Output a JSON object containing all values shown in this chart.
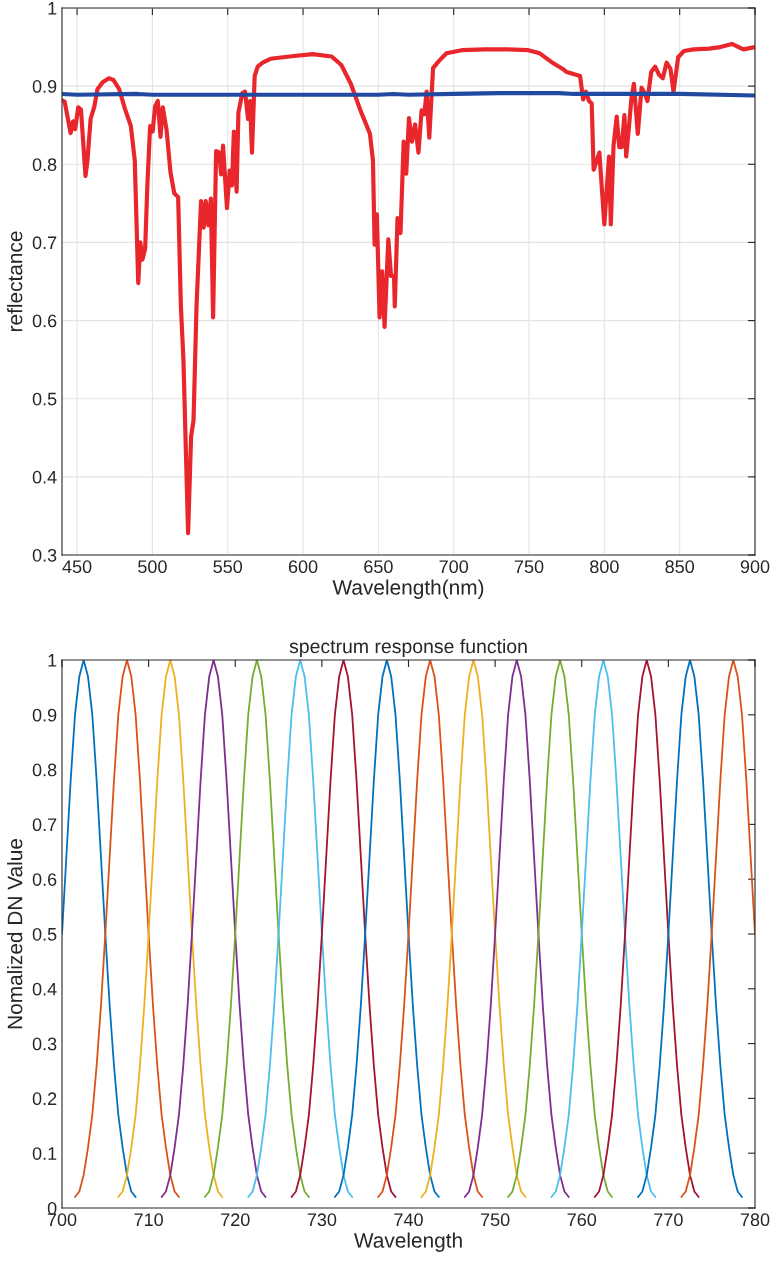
{
  "chart_data": [
    {
      "type": "line",
      "xlabel": "Wavelength(nm)",
      "ylabel": "reflectance",
      "xlim": [
        440,
        900
      ],
      "xticks": [
        450,
        500,
        550,
        600,
        650,
        700,
        750,
        800,
        850,
        900
      ],
      "ylim": [
        0.3,
        1
      ],
      "yticks": [
        0.3,
        0.4,
        0.5,
        0.6,
        0.7,
        0.8,
        0.9,
        1
      ],
      "grid": true,
      "series": [
        {
          "color": "#e8262b",
          "x": [
            440,
            441.8,
            445.7,
            447.4,
            448.7,
            450.8,
            452.6,
            455.6,
            456.9,
            459,
            461.5,
            463.5,
            467,
            471.1,
            474.1,
            478,
            481.8,
            485.7,
            488.3,
            490.6,
            492,
            493.4,
            495.2,
            496.7,
            498.5,
            500.2,
            501.8,
            503.6,
            505.4,
            506.9,
            509.4,
            512,
            514.5,
            517.1,
            518.9,
            520.6,
            523.7,
            525.7,
            527.3,
            529.3,
            532.3,
            534.1,
            535.4,
            537.2,
            538.8,
            540.3,
            542.3,
            544.4,
            545.6,
            546.9,
            549.5,
            551.3,
            552.8,
            554.1,
            555.9,
            557.1,
            559.7,
            561.5,
            563.5,
            564.8,
            566.1,
            567.9,
            569.9,
            573.2,
            578.4,
            591,
            606.3,
            619,
            625.4,
            631.7,
            638.1,
            644.4,
            646.4,
            647.5,
            649,
            650.8,
            652.5,
            654.1,
            656.6,
            658.4,
            660.4,
            660.9,
            662.7,
            664.7,
            666.8,
            668.5,
            670.3,
            672.3,
            674.4,
            676.6,
            678.7,
            680.5,
            682,
            683.8,
            686.3,
            690.1,
            695.2,
            705.3,
            720.6,
            735.8,
            749.5,
            757.1,
            764.8,
            772.4,
            775,
            783.9,
            785.9,
            787.8,
            789.8,
            791.6,
            792.9,
            796.7,
            800,
            803.1,
            804.3,
            806.1,
            808.2,
            809.9,
            811.5,
            813.3,
            814.5,
            816.3,
            817.9,
            819.6,
            822.2,
            824.7,
            826.8,
            828.6,
            831.1,
            833.7,
            836.2,
            838.8,
            841.3,
            843.9,
            845.9,
            849,
            852.8,
            859.2,
            869.4,
            877,
            884.7,
            892.3,
            900
          ],
          "values": [
            0.882,
            0.88,
            0.84,
            0.855,
            0.845,
            0.873,
            0.87,
            0.785,
            0.805,
            0.858,
            0.874,
            0.896,
            0.905,
            0.91,
            0.908,
            0.896,
            0.871,
            0.849,
            0.805,
            0.648,
            0.7,
            0.678,
            0.692,
            0.775,
            0.849,
            0.842,
            0.874,
            0.881,
            0.835,
            0.873,
            0.844,
            0.79,
            0.763,
            0.758,
            0.619,
            0.55,
            0.328,
            0.452,
            0.472,
            0.619,
            0.753,
            0.719,
            0.753,
            0.722,
            0.756,
            0.604,
            0.817,
            0.815,
            0.787,
            0.824,
            0.744,
            0.792,
            0.773,
            0.842,
            0.765,
            0.866,
            0.891,
            0.893,
            0.858,
            0.881,
            0.815,
            0.913,
            0.925,
            0.93,
            0.935,
            0.938,
            0.941,
            0.938,
            0.927,
            0.903,
            0.869,
            0.839,
            0.805,
            0.697,
            0.736,
            0.604,
            0.663,
            0.592,
            0.704,
            0.657,
            0.657,
            0.618,
            0.731,
            0.712,
            0.829,
            0.788,
            0.859,
            0.829,
            0.851,
            0.815,
            0.869,
            0.864,
            0.893,
            0.834,
            0.923,
            0.932,
            0.942,
            0.946,
            0.947,
            0.947,
            0.946,
            0.942,
            0.931,
            0.922,
            0.918,
            0.913,
            0.883,
            0.893,
            0.881,
            0.878,
            0.793,
            0.815,
            0.723,
            0.81,
            0.723,
            0.824,
            0.861,
            0.822,
            0.822,
            0.863,
            0.81,
            0.847,
            0.883,
            0.903,
            0.839,
            0.898,
            0.891,
            0.881,
            0.918,
            0.925,
            0.915,
            0.91,
            0.93,
            0.922,
            0.893,
            0.937,
            0.945,
            0.947,
            0.948,
            0.95,
            0.954,
            0.947,
            0.95
          ]
        },
        {
          "color": "#2149a0",
          "x": [
            440,
            450,
            490,
            500,
            560,
            650,
            660,
            670,
            700,
            730,
            770,
            780,
            850,
            900
          ],
          "values": [
            0.89,
            0.889,
            0.89,
            0.889,
            0.889,
            0.889,
            0.89,
            0.889,
            0.89,
            0.891,
            0.891,
            0.89,
            0.89,
            0.888
          ]
        }
      ]
    },
    {
      "type": "line",
      "title": "spectrum response function",
      "xlabel": "Wavelength",
      "ylabel": "Nomalized DN Value",
      "xlim": [
        700,
        780
      ],
      "xticks": [
        700,
        710,
        720,
        730,
        740,
        750,
        760,
        770,
        780
      ],
      "ylim": [
        0,
        1
      ],
      "yticks": [
        0,
        0.1,
        0.2,
        0.3,
        0.4,
        0.5,
        0.6,
        0.7,
        0.8,
        0.9,
        1
      ],
      "grid": false,
      "series": [
        {
          "color": "#0072bd",
          "x": [
            700,
            700.5,
            701,
            701.5,
            702,
            702.5,
            703,
            703.5,
            704,
            704.5,
            705,
            705.5,
            706,
            706.5,
            707,
            707.5,
            708,
            708.5
          ],
          "values": [
            0.5,
            0.64,
            0.78,
            0.9,
            0.97,
            1,
            0.97,
            0.9,
            0.78,
            0.64,
            0.5,
            0.37,
            0.26,
            0.17,
            0.11,
            0.06,
            0.03,
            0.02
          ]
        },
        {
          "color": "#d95319",
          "x": [
            701.5,
            702,
            702.5,
            703,
            703.5,
            704,
            704.5,
            705,
            705.5,
            706,
            706.5,
            707,
            707.5,
            708,
            708.5,
            709,
            709.5,
            710,
            710.5,
            711,
            711.5,
            712,
            712.5,
            713,
            713.5
          ],
          "values": [
            0.02,
            0.03,
            0.06,
            0.11,
            0.17,
            0.26,
            0.37,
            0.5,
            0.64,
            0.78,
            0.9,
            0.97,
            1,
            0.97,
            0.9,
            0.78,
            0.64,
            0.5,
            0.37,
            0.26,
            0.17,
            0.11,
            0.06,
            0.03,
            0.02
          ]
        },
        {
          "color": "#edb120",
          "x": [
            706.5,
            707,
            707.5,
            708,
            708.5,
            709,
            709.5,
            710,
            710.5,
            711,
            711.5,
            712,
            712.5,
            713,
            713.5,
            714,
            714.5,
            715,
            715.5,
            716,
            716.5,
            717,
            717.5,
            718,
            718.5
          ],
          "values": [
            0.02,
            0.03,
            0.06,
            0.11,
            0.17,
            0.26,
            0.37,
            0.5,
            0.64,
            0.78,
            0.9,
            0.97,
            1,
            0.97,
            0.9,
            0.78,
            0.64,
            0.5,
            0.37,
            0.26,
            0.17,
            0.11,
            0.06,
            0.03,
            0.02
          ]
        },
        {
          "color": "#7e2f8e",
          "x": [
            711.5,
            712,
            712.5,
            713,
            713.5,
            714,
            714.5,
            715,
            715.5,
            716,
            716.5,
            717,
            717.5,
            718,
            718.5,
            719,
            719.5,
            720,
            720.5,
            721,
            721.5,
            722,
            722.5,
            723,
            723.5
          ],
          "values": [
            0.02,
            0.03,
            0.06,
            0.11,
            0.17,
            0.26,
            0.37,
            0.5,
            0.64,
            0.78,
            0.9,
            0.97,
            1,
            0.97,
            0.9,
            0.78,
            0.64,
            0.5,
            0.37,
            0.26,
            0.17,
            0.11,
            0.06,
            0.03,
            0.02
          ]
        },
        {
          "color": "#77ac30",
          "x": [
            716.5,
            717,
            717.5,
            718,
            718.5,
            719,
            719.5,
            720,
            720.5,
            721,
            721.5,
            722,
            722.5,
            723,
            723.5,
            724,
            724.5,
            725,
            725.5,
            726,
            726.5,
            727,
            727.5,
            728,
            728.5
          ],
          "values": [
            0.02,
            0.03,
            0.06,
            0.11,
            0.17,
            0.26,
            0.37,
            0.5,
            0.64,
            0.78,
            0.9,
            0.97,
            1,
            0.97,
            0.9,
            0.78,
            0.64,
            0.5,
            0.37,
            0.26,
            0.17,
            0.11,
            0.06,
            0.03,
            0.02
          ]
        },
        {
          "color": "#4dbeee",
          "x": [
            721.5,
            722,
            722.5,
            723,
            723.5,
            724,
            724.5,
            725,
            725.5,
            726,
            726.5,
            727,
            727.5,
            728,
            728.5,
            729,
            729.5,
            730,
            730.5,
            731,
            731.5,
            732,
            732.5,
            733,
            733.5
          ],
          "values": [
            0.02,
            0.03,
            0.06,
            0.11,
            0.17,
            0.26,
            0.37,
            0.5,
            0.64,
            0.78,
            0.9,
            0.97,
            1,
            0.97,
            0.9,
            0.78,
            0.64,
            0.5,
            0.37,
            0.26,
            0.17,
            0.11,
            0.06,
            0.03,
            0.02
          ]
        },
        {
          "color": "#a2142f",
          "x": [
            726.5,
            727,
            727.5,
            728,
            728.5,
            729,
            729.5,
            730,
            730.5,
            731,
            731.5,
            732,
            732.5,
            733,
            733.5,
            734,
            734.5,
            735,
            735.5,
            736,
            736.5,
            737,
            737.5,
            738,
            738.5
          ],
          "values": [
            0.02,
            0.03,
            0.06,
            0.11,
            0.17,
            0.26,
            0.37,
            0.5,
            0.64,
            0.78,
            0.9,
            0.97,
            1,
            0.97,
            0.9,
            0.78,
            0.64,
            0.5,
            0.37,
            0.26,
            0.17,
            0.11,
            0.06,
            0.03,
            0.02
          ]
        },
        {
          "color": "#0072bd",
          "x": [
            731.5,
            732,
            732.5,
            733,
            733.5,
            734,
            734.5,
            735,
            735.5,
            736,
            736.5,
            737,
            737.5,
            738,
            738.5,
            739,
            739.5,
            740,
            740.5,
            741,
            741.5,
            742,
            742.5,
            743,
            743.5
          ],
          "values": [
            0.02,
            0.03,
            0.06,
            0.11,
            0.17,
            0.26,
            0.37,
            0.5,
            0.64,
            0.78,
            0.9,
            0.97,
            1,
            0.97,
            0.9,
            0.78,
            0.64,
            0.5,
            0.37,
            0.26,
            0.17,
            0.11,
            0.06,
            0.03,
            0.02
          ]
        },
        {
          "color": "#d95319",
          "x": [
            736.5,
            737,
            737.5,
            738,
            738.5,
            739,
            739.5,
            740,
            740.5,
            741,
            741.5,
            742,
            742.5,
            743,
            743.5,
            744,
            744.5,
            745,
            745.5,
            746,
            746.5,
            747,
            747.5,
            748,
            748.5
          ],
          "values": [
            0.02,
            0.03,
            0.06,
            0.11,
            0.17,
            0.26,
            0.37,
            0.5,
            0.64,
            0.78,
            0.9,
            0.97,
            1,
            0.97,
            0.9,
            0.78,
            0.64,
            0.5,
            0.37,
            0.26,
            0.17,
            0.11,
            0.06,
            0.03,
            0.02
          ]
        },
        {
          "color": "#edb120",
          "x": [
            741.5,
            742,
            742.5,
            743,
            743.5,
            744,
            744.5,
            745,
            745.5,
            746,
            746.5,
            747,
            747.5,
            748,
            748.5,
            749,
            749.5,
            750,
            750.5,
            751,
            751.5,
            752,
            752.5,
            753,
            753.5
          ],
          "values": [
            0.02,
            0.03,
            0.06,
            0.11,
            0.17,
            0.26,
            0.37,
            0.5,
            0.64,
            0.78,
            0.9,
            0.97,
            1,
            0.97,
            0.9,
            0.78,
            0.64,
            0.5,
            0.37,
            0.26,
            0.17,
            0.11,
            0.06,
            0.03,
            0.02
          ]
        },
        {
          "color": "#7e2f8e",
          "x": [
            746.5,
            747,
            747.5,
            748,
            748.5,
            749,
            749.5,
            750,
            750.5,
            751,
            751.5,
            752,
            752.5,
            753,
            753.5,
            754,
            754.5,
            755,
            755.5,
            756,
            756.5,
            757,
            757.5,
            758,
            758.5
          ],
          "values": [
            0.02,
            0.03,
            0.06,
            0.11,
            0.17,
            0.26,
            0.37,
            0.5,
            0.64,
            0.78,
            0.9,
            0.97,
            1,
            0.97,
            0.9,
            0.78,
            0.64,
            0.5,
            0.37,
            0.26,
            0.17,
            0.11,
            0.06,
            0.03,
            0.02
          ]
        },
        {
          "color": "#77ac30",
          "x": [
            751.5,
            752,
            752.5,
            753,
            753.5,
            754,
            754.5,
            755,
            755.5,
            756,
            756.5,
            757,
            757.5,
            758,
            758.5,
            759,
            759.5,
            760,
            760.5,
            761,
            761.5,
            762,
            762.5,
            763,
            763.5
          ],
          "values": [
            0.02,
            0.03,
            0.06,
            0.11,
            0.17,
            0.26,
            0.37,
            0.5,
            0.64,
            0.78,
            0.9,
            0.97,
            1,
            0.97,
            0.9,
            0.78,
            0.64,
            0.5,
            0.37,
            0.26,
            0.17,
            0.11,
            0.06,
            0.03,
            0.02
          ]
        },
        {
          "color": "#4dbeee",
          "x": [
            756.5,
            757,
            757.5,
            758,
            758.5,
            759,
            759.5,
            760,
            760.5,
            761,
            761.5,
            762,
            762.5,
            763,
            763.5,
            764,
            764.5,
            765,
            765.5,
            766,
            766.5,
            767,
            767.5,
            768,
            768.5
          ],
          "values": [
            0.02,
            0.03,
            0.06,
            0.11,
            0.17,
            0.26,
            0.37,
            0.5,
            0.64,
            0.78,
            0.9,
            0.97,
            1,
            0.97,
            0.9,
            0.78,
            0.64,
            0.5,
            0.37,
            0.26,
            0.17,
            0.11,
            0.06,
            0.03,
            0.02
          ]
        },
        {
          "color": "#a2142f",
          "x": [
            761.5,
            762,
            762.5,
            763,
            763.5,
            764,
            764.5,
            765,
            765.5,
            766,
            766.5,
            767,
            767.5,
            768,
            768.5,
            769,
            769.5,
            770,
            770.5,
            771,
            771.5,
            772,
            772.5,
            773,
            773.5
          ],
          "values": [
            0.02,
            0.03,
            0.06,
            0.11,
            0.17,
            0.26,
            0.37,
            0.5,
            0.64,
            0.78,
            0.9,
            0.97,
            1,
            0.97,
            0.9,
            0.78,
            0.64,
            0.5,
            0.37,
            0.26,
            0.17,
            0.11,
            0.06,
            0.03,
            0.02
          ]
        },
        {
          "color": "#0072bd",
          "x": [
            766.5,
            767,
            767.5,
            768,
            768.5,
            769,
            769.5,
            770,
            770.5,
            771,
            771.5,
            772,
            772.5,
            773,
            773.5,
            774,
            774.5,
            775,
            775.5,
            776,
            776.5,
            777,
            777.5,
            778,
            778.5
          ],
          "values": [
            0.02,
            0.03,
            0.06,
            0.11,
            0.17,
            0.26,
            0.37,
            0.5,
            0.64,
            0.78,
            0.9,
            0.97,
            1,
            0.97,
            0.9,
            0.78,
            0.64,
            0.5,
            0.37,
            0.26,
            0.17,
            0.11,
            0.06,
            0.03,
            0.02
          ]
        },
        {
          "color": "#d95319",
          "x": [
            771.5,
            772,
            772.5,
            773,
            773.5,
            774,
            774.5,
            775,
            775.5,
            776,
            776.5,
            777,
            777.5,
            778,
            778.5,
            779,
            779.5,
            780
          ],
          "values": [
            0.02,
            0.03,
            0.06,
            0.11,
            0.17,
            0.26,
            0.37,
            0.5,
            0.64,
            0.78,
            0.9,
            0.97,
            1,
            0.97,
            0.9,
            0.78,
            0.64,
            0.5
          ]
        }
      ]
    }
  ]
}
